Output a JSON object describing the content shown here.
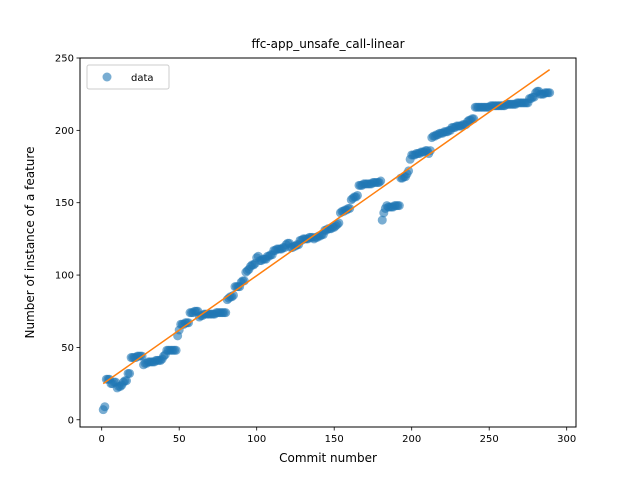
{
  "chart_data": {
    "type": "scatter",
    "title": "ffc-app_unsafe_call-linear",
    "xlabel": "Commit number",
    "ylabel": "Number of instance of a feature",
    "xlim": [
      -14,
      306
    ],
    "ylim": [
      -5,
      250
    ],
    "xticks": [
      0,
      50,
      100,
      150,
      200,
      250,
      300
    ],
    "yticks": [
      0,
      50,
      100,
      150,
      200,
      250
    ],
    "legend": {
      "position": "top-left",
      "entries": [
        "data"
      ]
    },
    "grid": false,
    "colors": {
      "data": "#1f77b4",
      "fit": "#ff7f0e"
    },
    "series": [
      {
        "name": "data",
        "kind": "scatter",
        "segments": [
          [
            1,
            2,
            7,
            9
          ],
          [
            3,
            5,
            28,
            28
          ],
          [
            6,
            9,
            25,
            26
          ],
          [
            10,
            13,
            22,
            24
          ],
          [
            14,
            16,
            26,
            27
          ],
          [
            17,
            18,
            32,
            32
          ],
          [
            19,
            26,
            43,
            44
          ],
          [
            27,
            30,
            38,
            40
          ],
          [
            31,
            38,
            40,
            41
          ],
          [
            39,
            41,
            42,
            45
          ],
          [
            42,
            48,
            48,
            48
          ],
          [
            49,
            50,
            58,
            62
          ],
          [
            51,
            56,
            66,
            67
          ],
          [
            57,
            62,
            74,
            75
          ],
          [
            63,
            66,
            71,
            73
          ],
          [
            67,
            80,
            73,
            74
          ],
          [
            81,
            85,
            83,
            86
          ],
          [
            86,
            89,
            92,
            92
          ],
          [
            90,
            92,
            95,
            96
          ],
          [
            93,
            95,
            102,
            104
          ],
          [
            96,
            99,
            106,
            108
          ],
          [
            100,
            101,
            112,
            113
          ],
          [
            102,
            106,
            110,
            111
          ],
          [
            107,
            110,
            113,
            114
          ],
          [
            111,
            118,
            117,
            119
          ],
          [
            119,
            121,
            121,
            122
          ],
          [
            122,
            127,
            119,
            121
          ],
          [
            128,
            136,
            124,
            126
          ],
          [
            137,
            143,
            125,
            128
          ],
          [
            144,
            150,
            131,
            133
          ],
          [
            151,
            153,
            134,
            136
          ],
          [
            154,
            160,
            143,
            146
          ],
          [
            161,
            165,
            152,
            155
          ],
          [
            166,
            178,
            162,
            164
          ],
          [
            179,
            180,
            164,
            165
          ],
          [
            181,
            181,
            138,
            138
          ],
          [
            182,
            184,
            143,
            148
          ],
          [
            185,
            192,
            147,
            148
          ],
          [
            193,
            196,
            167,
            168
          ],
          [
            197,
            198,
            170,
            172
          ],
          [
            199,
            200,
            180,
            183
          ],
          [
            201,
            210,
            183,
            186
          ],
          [
            211,
            212,
            184,
            186
          ],
          [
            213,
            218,
            195,
            198
          ],
          [
            219,
            225,
            198,
            200
          ],
          [
            226,
            235,
            202,
            204
          ],
          [
            236,
            240,
            206,
            208
          ],
          [
            241,
            260,
            216,
            217
          ],
          [
            261,
            275,
            218,
            219
          ],
          [
            276,
            279,
            222,
            223
          ],
          [
            280,
            282,
            226,
            227
          ],
          [
            283,
            289,
            225,
            226
          ]
        ]
      },
      {
        "name": "",
        "kind": "line",
        "x": [
          1,
          289
        ],
        "y": [
          25,
          242
        ]
      }
    ]
  }
}
